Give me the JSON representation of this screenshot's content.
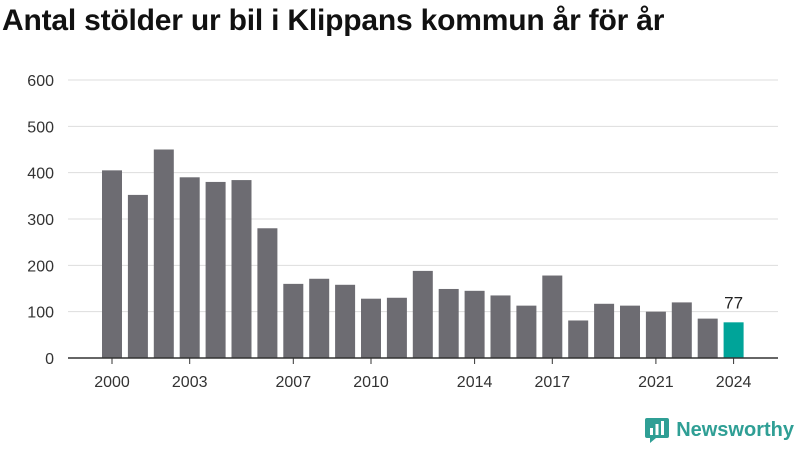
{
  "title": "Antal stölder ur bil i Klippans kommun år för år",
  "logo_text": "Newsworthy",
  "colors": {
    "bar": "#6d6c72",
    "highlight": "#00a499",
    "grid": "#dddddd",
    "axis": "#333333",
    "brand": "#2f9f95"
  },
  "chart_data": {
    "type": "bar",
    "x": [
      2000,
      2001,
      2002,
      2003,
      2004,
      2005,
      2006,
      2007,
      2008,
      2009,
      2010,
      2011,
      2012,
      2013,
      2014,
      2015,
      2016,
      2017,
      2018,
      2019,
      2020,
      2021,
      2022,
      2023,
      2024
    ],
    "values": [
      405,
      352,
      450,
      390,
      380,
      384,
      280,
      160,
      171,
      158,
      128,
      130,
      188,
      149,
      145,
      135,
      113,
      178,
      81,
      117,
      113,
      100,
      120,
      85,
      77
    ],
    "ylim": [
      0,
      600
    ],
    "yticks": [
      0,
      100,
      200,
      300,
      400,
      500,
      600
    ],
    "xtick_labels": [
      2000,
      2003,
      2007,
      2010,
      2014,
      2017,
      2021,
      2024
    ],
    "highlight": {
      "x": 2024,
      "label": "77"
    },
    "grid": true
  }
}
